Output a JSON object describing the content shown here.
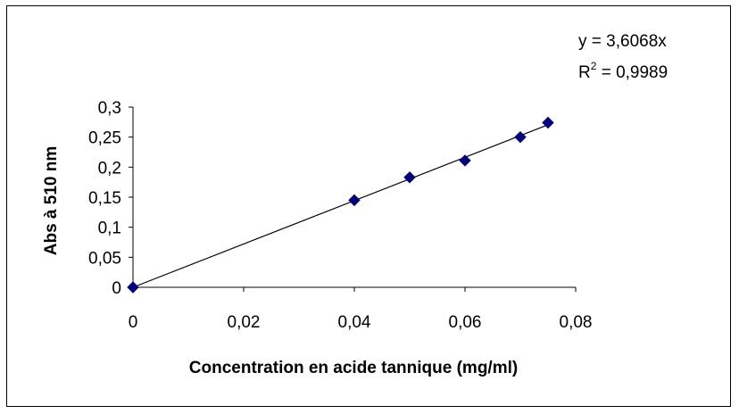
{
  "chart_data": {
    "type": "scatter",
    "title": "",
    "xlabel": "Concentration en acide tannique (mg/ml)",
    "ylabel": "Abs à 510 nm",
    "xlim": [
      0,
      0.08
    ],
    "ylim": [
      0,
      0.3
    ],
    "x_ticks": [
      0,
      0.02,
      0.04,
      0.06,
      0.08
    ],
    "x_tick_labels": [
      "0",
      "0,02",
      "0,04",
      "0,06",
      "0,08"
    ],
    "y_ticks": [
      0,
      0.05,
      0.1,
      0.15,
      0.2,
      0.25,
      0.3
    ],
    "y_tick_labels": [
      "0",
      "0,05",
      "0,1",
      "0,15",
      "0,2",
      "0,25",
      "0,3"
    ],
    "grid": false,
    "legend": "none",
    "marker_color": "#000080",
    "line_color": "#000000",
    "series": [
      {
        "marker": "diamond",
        "points": [
          {
            "x": 0,
            "y": 0
          },
          {
            "x": 0.04,
            "y": 0.145
          },
          {
            "x": 0.05,
            "y": 0.183
          },
          {
            "x": 0.06,
            "y": 0.211
          },
          {
            "x": 0.07,
            "y": 0.25
          },
          {
            "x": 0.075,
            "y": 0.274
          }
        ]
      }
    ],
    "trendline": {
      "type": "linear",
      "slope": 3.6068,
      "intercept": 0,
      "x_range": [
        0,
        0.075
      ],
      "equation_label": "y = 3,6068x",
      "r2_prefix": "R",
      "r2_superscript": "2",
      "r2_suffix": " = 0,9989"
    }
  }
}
